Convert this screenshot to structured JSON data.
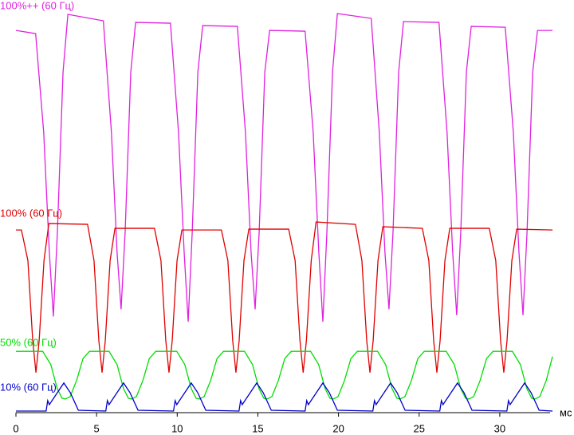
{
  "chart_data": {
    "type": "line",
    "x_label": "мс",
    "xlim": [
      0,
      33.5
    ],
    "xticks": [
      0,
      5,
      10,
      15,
      20,
      25,
      30
    ],
    "ylim": [
      0,
      100
    ],
    "series": [
      {
        "name": "100%++ (60 Гц)",
        "color": "#e020e0",
        "x": [
          0,
          1.22,
          1.72,
          2.07,
          2.32,
          2.57,
          2.92,
          3.22,
          5.42,
          5.92,
          6.27,
          6.52,
          6.77,
          7.12,
          7.42,
          9.58,
          10.08,
          10.43,
          10.68,
          10.93,
          11.28,
          11.58,
          13.73,
          14.23,
          14.58,
          14.83,
          15.08,
          15.43,
          15.73,
          17.93,
          18.43,
          18.78,
          19.03,
          19.28,
          19.63,
          19.93,
          22.03,
          22.53,
          22.88,
          23.13,
          23.38,
          23.73,
          24.03,
          26.23,
          26.73,
          27.08,
          27.33,
          27.58,
          27.93,
          28.23,
          30.34,
          30.84,
          31.19,
          31.44,
          31.69,
          32.04,
          32.34,
          33.27
        ],
        "values": [
          95.4,
          94.6,
          70,
          40,
          24,
          45,
          85,
          99.4,
          97.8,
          70,
          40,
          25.8,
          45,
          85,
          97.4,
          97.2,
          70,
          40,
          22.7,
          45,
          85,
          96.6,
          96.4,
          70,
          40,
          25.8,
          45,
          85,
          95.4,
          95.2,
          70,
          40,
          22.7,
          45,
          85,
          99.6,
          98.4,
          70,
          40,
          25.8,
          45,
          85,
          97.6,
          97.4,
          70,
          40,
          24.3,
          45,
          85,
          96.4,
          96.2,
          70,
          40,
          24.3,
          45,
          85,
          95.4,
          95.4
        ]
      },
      {
        "name": "100% (60 Гц)",
        "color": "#e00000",
        "x": [
          0,
          0.34,
          0.74,
          1.04,
          1.24,
          1.44,
          1.74,
          2.04,
          4.44,
          4.84,
          5.14,
          5.34,
          5.54,
          5.84,
          6.14,
          8.59,
          8.99,
          9.29,
          9.49,
          9.69,
          9.99,
          10.29,
          12.74,
          13.14,
          13.44,
          13.64,
          13.84,
          14.14,
          14.44,
          16.91,
          17.31,
          17.61,
          17.81,
          18.01,
          18.31,
          18.61,
          21.05,
          21.45,
          21.75,
          21.95,
          22.15,
          22.45,
          22.75,
          25.2,
          25.6,
          25.9,
          26.1,
          26.3,
          26.6,
          26.9,
          29.35,
          29.75,
          30.05,
          30.25,
          30.45,
          30.75,
          31.05,
          33.27
        ],
        "values": [
          45.6,
          45.6,
          38,
          18,
          10,
          18,
          38,
          47.2,
          47,
          38,
          18,
          10,
          18,
          38,
          46,
          46,
          38,
          18,
          10,
          18,
          38,
          45.6,
          45.6,
          38,
          18,
          10,
          18,
          38,
          45.8,
          45.8,
          38,
          18,
          10,
          18,
          38,
          47.6,
          47,
          38,
          18,
          10,
          18,
          38,
          46.4,
          46,
          38,
          18,
          10,
          18,
          38,
          46,
          46,
          38,
          18,
          10,
          18,
          38,
          45.8,
          45.6
        ]
      },
      {
        "name": "50% (60 Гц)",
        "color": "#00dd00",
        "x": [
          0,
          1.66,
          2.16,
          2.56,
          2.86,
          3.06,
          3.36,
          3.76,
          4.16,
          4.56,
          5.77,
          6.27,
          6.67,
          6.97,
          7.17,
          7.47,
          7.87,
          8.27,
          8.67,
          9.97,
          10.47,
          10.87,
          11.17,
          11.37,
          11.67,
          12.07,
          12.47,
          12.87,
          14.17,
          14.67,
          15.07,
          15.37,
          15.57,
          15.87,
          16.27,
          16.67,
          17.07,
          18.27,
          18.77,
          19.17,
          19.47,
          19.67,
          19.97,
          20.37,
          20.77,
          21.17,
          22.42,
          22.92,
          23.32,
          23.62,
          23.82,
          24.12,
          24.52,
          24.92,
          25.32,
          26.68,
          27.18,
          27.58,
          27.88,
          28.08,
          28.38,
          28.78,
          29.18,
          29.58,
          30.78,
          31.28,
          31.68,
          31.98,
          32.18,
          32.48,
          32.88,
          33.27
        ],
        "values": [
          15.3,
          15.3,
          12,
          6,
          3.6,
          3.4,
          4,
          8,
          13.5,
          15.3,
          15.3,
          12,
          6,
          3.6,
          3.4,
          4,
          8,
          13.5,
          15.3,
          15.3,
          12,
          6,
          3.6,
          3.4,
          4,
          8,
          13.5,
          15.3,
          15.3,
          12,
          6,
          3.6,
          3.4,
          4,
          8,
          13.5,
          15.3,
          15.3,
          12,
          6,
          3.6,
          3.4,
          4,
          8,
          13.5,
          15.3,
          15.3,
          12,
          6,
          3.6,
          3.4,
          4,
          8,
          13.5,
          15.3,
          15.3,
          12,
          6,
          3.6,
          3.4,
          4,
          8,
          13.5,
          15.3,
          15.3,
          12,
          6,
          3.6,
          3.4,
          4,
          8,
          14
        ]
      },
      {
        "name": "10% (60 Гц)",
        "color": "#0000cc",
        "x": [
          0,
          1.87,
          1.97,
          2.07,
          2.57,
          2.97,
          3.37,
          3.87,
          5.57,
          5.67,
          5.77,
          6.27,
          6.67,
          7.07,
          7.57,
          9.77,
          9.87,
          9.97,
          10.47,
          10.87,
          11.27,
          11.77,
          13.83,
          13.93,
          14.03,
          14.53,
          14.93,
          15.33,
          15.83,
          17.93,
          18.03,
          18.13,
          18.63,
          19.03,
          19.43,
          19.93,
          22.13,
          22.23,
          22.33,
          22.83,
          23.23,
          23.63,
          24.13,
          26.28,
          26.38,
          26.48,
          26.98,
          27.38,
          27.78,
          28.28,
          30.44,
          30.54,
          30.64,
          31.14,
          31.54,
          31.94,
          32.44,
          33.27
        ],
        "values": [
          0.4,
          0.4,
          3,
          2,
          5,
          7.4,
          5,
          0.6,
          0.4,
          3,
          2,
          5,
          7.4,
          5,
          0.6,
          0.4,
          3,
          2,
          5,
          7.4,
          5,
          0.6,
          0.4,
          3,
          2,
          5,
          7.4,
          5,
          0.6,
          0.4,
          3,
          2,
          5,
          7.4,
          5,
          0.6,
          0.4,
          3,
          2,
          5,
          7.4,
          5,
          0.6,
          0.4,
          3,
          2,
          5,
          7.4,
          5,
          0.6,
          0.4,
          3,
          2,
          5,
          7.4,
          5,
          0.6,
          0.4
        ]
      }
    ]
  }
}
